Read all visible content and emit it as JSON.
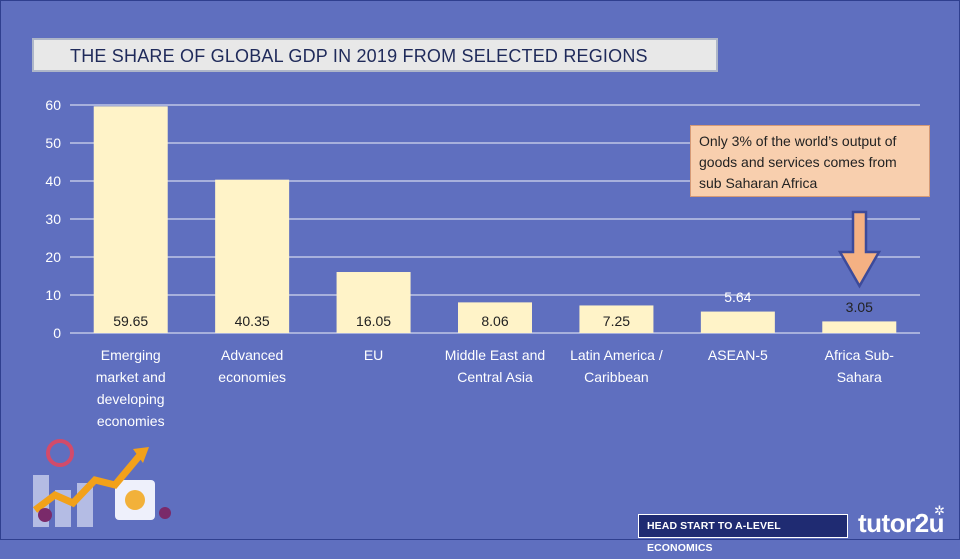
{
  "header": {
    "title": "THE SHARE OF GLOBAL GDP IN 2019 FROM SELECTED REGIONS"
  },
  "callout": {
    "text": "Only 3% of the world’s output of goods and services comes from sub Saharan Africa"
  },
  "footer": {
    "banner": "HEAD START TO A-LEVEL ECONOMICS",
    "logo": "tutor2u"
  },
  "colors": {
    "background": "#5f6fbf",
    "bar": "#fff3c8",
    "callout": "#f8cfae",
    "arrow": "#f5b183",
    "banner": "#1f2b72"
  },
  "chart_data": {
    "type": "bar",
    "title": "THE SHARE OF GLOBAL GDP IN 2019 FROM SELECTED REGIONS",
    "xlabel": "",
    "ylabel": "",
    "ylim": [
      0,
      60
    ],
    "yticks": [
      "0",
      "10",
      "20",
      "30",
      "40",
      "50",
      "60"
    ],
    "grid": true,
    "categories": [
      [
        "Emerging",
        "market and",
        "developing",
        "economies"
      ],
      [
        "Advanced",
        "economies"
      ],
      [
        "EU"
      ],
      [
        "Middle East and",
        "Central Asia"
      ],
      [
        "Latin America /",
        "Caribbean"
      ],
      [
        "ASEAN-5"
      ],
      [
        "Africa Sub-",
        "Sahara"
      ]
    ],
    "values": [
      59.65,
      40.35,
      16.05,
      8.06,
      7.25,
      5.64,
      3.05
    ],
    "data_labels": [
      "59.65",
      "40.35",
      "16.05",
      "8.06",
      "7.25",
      "5.64",
      "3.05"
    ]
  }
}
